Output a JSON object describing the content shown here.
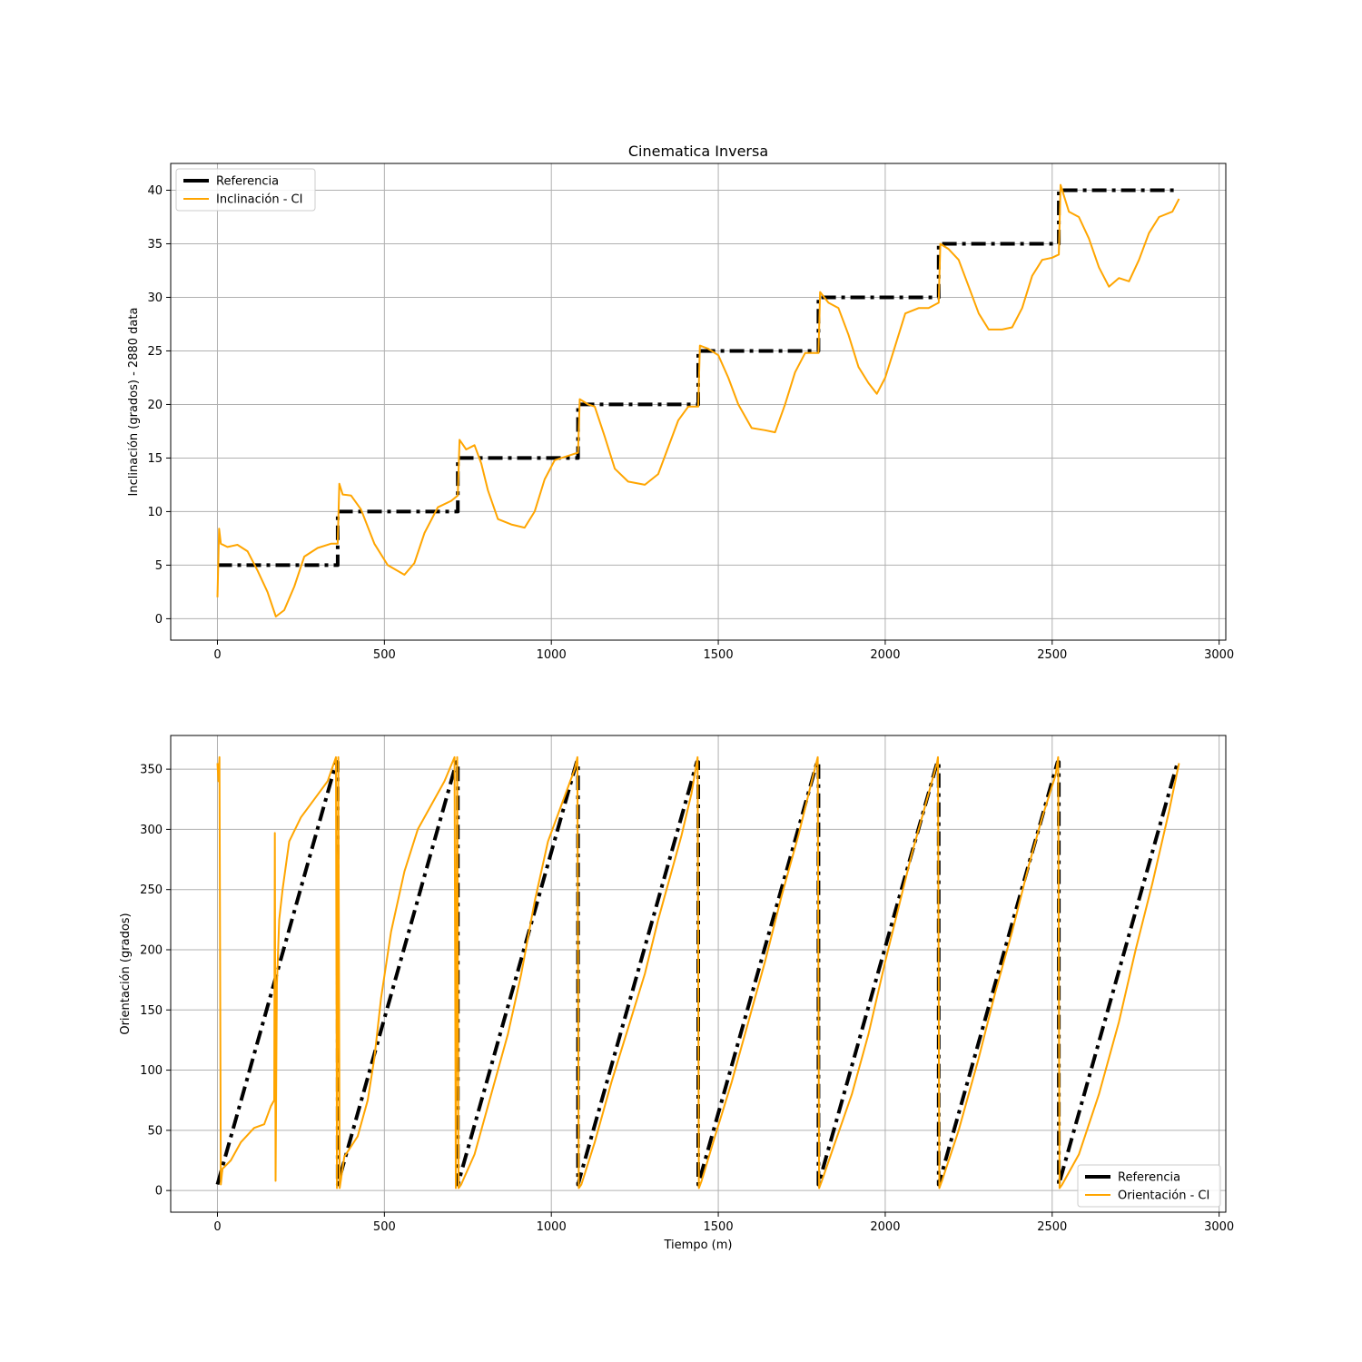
{
  "colors": {
    "reference": "#000000",
    "ik": "#FFA500",
    "grid": "#b0b0b0"
  },
  "chart_data": [
    {
      "type": "line",
      "title": "Cinematica Inversa",
      "xlabel": "",
      "ylabel": "Inclinación (grados) - 2880 data",
      "xlim": [
        -140,
        3020
      ],
      "ylim": [
        -2,
        42.5
      ],
      "xticks": [
        0,
        500,
        1000,
        1500,
        2000,
        2500,
        3000
      ],
      "yticks": [
        0,
        5,
        10,
        15,
        20,
        25,
        30,
        35,
        40
      ],
      "grid": true,
      "legend_position": "upper-left",
      "series": [
        {
          "name": "Referencia",
          "style": "dash-dot",
          "points": [
            [
              0,
              5
            ],
            [
              360,
              5
            ],
            [
              360,
              10
            ],
            [
              720,
              10
            ],
            [
              720,
              15
            ],
            [
              1080,
              15
            ],
            [
              1080,
              20
            ],
            [
              1440,
              20
            ],
            [
              1440,
              25
            ],
            [
              1800,
              25
            ],
            [
              1800,
              30
            ],
            [
              2160,
              30
            ],
            [
              2160,
              35
            ],
            [
              2520,
              35
            ],
            [
              2520,
              40
            ],
            [
              2880,
              40
            ]
          ]
        },
        {
          "name": "Inclinación - CI",
          "style": "solid",
          "points": [
            [
              0,
              2
            ],
            [
              5,
              8.4
            ],
            [
              10,
              7
            ],
            [
              30,
              6.7
            ],
            [
              60,
              6.9
            ],
            [
              90,
              6.3
            ],
            [
              120,
              4.5
            ],
            [
              150,
              2.5
            ],
            [
              175,
              0.2
            ],
            [
              200,
              0.8
            ],
            [
              230,
              3
            ],
            [
              260,
              5.8
            ],
            [
              300,
              6.6
            ],
            [
              340,
              7
            ],
            [
              360,
              7
            ],
            [
              365,
              12.6
            ],
            [
              375,
              11.6
            ],
            [
              400,
              11.5
            ],
            [
              430,
              10.2
            ],
            [
              470,
              7
            ],
            [
              510,
              5
            ],
            [
              560,
              4.1
            ],
            [
              590,
              5.2
            ],
            [
              620,
              8
            ],
            [
              660,
              10.4
            ],
            [
              700,
              11
            ],
            [
              720,
              11.5
            ],
            [
              725,
              16.7
            ],
            [
              745,
              15.8
            ],
            [
              770,
              16.2
            ],
            [
              790,
              14.5
            ],
            [
              810,
              12
            ],
            [
              840,
              9.3
            ],
            [
              880,
              8.8
            ],
            [
              920,
              8.5
            ],
            [
              950,
              10
            ],
            [
              980,
              13
            ],
            [
              1010,
              14.8
            ],
            [
              1050,
              15.2
            ],
            [
              1080,
              15.5
            ],
            [
              1085,
              20.5
            ],
            [
              1110,
              20
            ],
            [
              1130,
              19.8
            ],
            [
              1160,
              17
            ],
            [
              1190,
              14
            ],
            [
              1230,
              12.8
            ],
            [
              1280,
              12.5
            ],
            [
              1320,
              13.5
            ],
            [
              1350,
              16
            ],
            [
              1380,
              18.5
            ],
            [
              1410,
              19.8
            ],
            [
              1440,
              19.8
            ],
            [
              1445,
              25.5
            ],
            [
              1470,
              25.2
            ],
            [
              1500,
              24.6
            ],
            [
              1530,
              22.5
            ],
            [
              1560,
              20
            ],
            [
              1600,
              17.8
            ],
            [
              1640,
              17.6
            ],
            [
              1670,
              17.4
            ],
            [
              1700,
              20
            ],
            [
              1730,
              23
            ],
            [
              1760,
              24.8
            ],
            [
              1800,
              24.8
            ],
            [
              1805,
              30.5
            ],
            [
              1830,
              29.5
            ],
            [
              1860,
              29
            ],
            [
              1890,
              26.5
            ],
            [
              1920,
              23.5
            ],
            [
              1950,
              22
            ],
            [
              1975,
              21
            ],
            [
              2000,
              22.5
            ],
            [
              2030,
              25.5
            ],
            [
              2060,
              28.5
            ],
            [
              2100,
              29
            ],
            [
              2130,
              29
            ],
            [
              2160,
              29.5
            ],
            [
              2165,
              35
            ],
            [
              2190,
              34.5
            ],
            [
              2220,
              33.5
            ],
            [
              2250,
              31
            ],
            [
              2280,
              28.5
            ],
            [
              2310,
              27
            ],
            [
              2350,
              27
            ],
            [
              2380,
              27.2
            ],
            [
              2410,
              29
            ],
            [
              2440,
              32
            ],
            [
              2470,
              33.5
            ],
            [
              2500,
              33.7
            ],
            [
              2520,
              34
            ],
            [
              2525,
              40.5
            ],
            [
              2550,
              38
            ],
            [
              2580,
              37.5
            ],
            [
              2610,
              35.5
            ],
            [
              2640,
              32.8
            ],
            [
              2670,
              31
            ],
            [
              2700,
              31.8
            ],
            [
              2730,
              31.5
            ],
            [
              2760,
              33.5
            ],
            [
              2790,
              36
            ],
            [
              2820,
              37.5
            ],
            [
              2860,
              38
            ],
            [
              2880,
              39.2
            ]
          ]
        }
      ]
    },
    {
      "type": "line",
      "title": "",
      "xlabel": "Tiempo (m)",
      "ylabel": "Orientación (grados)",
      "xlim": [
        -140,
        3020
      ],
      "ylim": [
        -18,
        378
      ],
      "xticks": [
        0,
        500,
        1000,
        1500,
        2000,
        2500,
        3000
      ],
      "yticks": [
        0,
        50,
        100,
        150,
        200,
        250,
        300,
        350
      ],
      "grid": true,
      "legend_position": "lower-right",
      "series": [
        {
          "name": "Referencia",
          "style": "dash-dot",
          "points": [
            [
              0,
              5
            ],
            [
              356,
              356
            ],
            [
              360,
              356
            ],
            [
              360,
              5
            ],
            [
              716,
              356
            ],
            [
              720,
              356
            ],
            [
              720,
              5
            ],
            [
              1076,
              356
            ],
            [
              1080,
              356
            ],
            [
              1080,
              5
            ],
            [
              1436,
              356
            ],
            [
              1440,
              356
            ],
            [
              1440,
              5
            ],
            [
              1796,
              356
            ],
            [
              1800,
              356
            ],
            [
              1800,
              5
            ],
            [
              2156,
              356
            ],
            [
              2160,
              356
            ],
            [
              2160,
              5
            ],
            [
              2516,
              356
            ],
            [
              2520,
              356
            ],
            [
              2520,
              5
            ],
            [
              2876,
              356
            ]
          ]
        },
        {
          "name": "Orientación - CI",
          "style": "solid",
          "points": [
            [
              0,
              355
            ],
            [
              3,
              340
            ],
            [
              6,
              360
            ],
            [
              10,
              5
            ],
            [
              15,
              18
            ],
            [
              40,
              25
            ],
            [
              70,
              40
            ],
            [
              110,
              52
            ],
            [
              140,
              55
            ],
            [
              160,
              70
            ],
            [
              170,
              75
            ],
            [
              172,
              297
            ],
            [
              174,
              8
            ],
            [
              178,
              170
            ],
            [
              185,
              225
            ],
            [
              195,
              250
            ],
            [
              215,
              290
            ],
            [
              250,
              310
            ],
            [
              290,
              325
            ],
            [
              330,
              340
            ],
            [
              355,
              360
            ],
            [
              358,
              2
            ],
            [
              362,
              360
            ],
            [
              366,
              2
            ],
            [
              380,
              28
            ],
            [
              420,
              45
            ],
            [
              450,
              75
            ],
            [
              470,
              110
            ],
            [
              490,
              160
            ],
            [
              520,
              215
            ],
            [
              560,
              265
            ],
            [
              600,
              300
            ],
            [
              640,
              320
            ],
            [
              680,
              340
            ],
            [
              710,
              360
            ],
            [
              714,
              2
            ],
            [
              718,
              360
            ],
            [
              722,
              2
            ],
            [
              730,
              5
            ],
            [
              770,
              30
            ],
            [
              820,
              80
            ],
            [
              870,
              130
            ],
            [
              910,
              180
            ],
            [
              950,
              240
            ],
            [
              990,
              290
            ],
            [
              1030,
              320
            ],
            [
              1070,
              350
            ],
            [
              1078,
              360
            ],
            [
              1082,
              2
            ],
            [
              1090,
              5
            ],
            [
              1130,
              40
            ],
            [
              1180,
              90
            ],
            [
              1230,
              135
            ],
            [
              1280,
              180
            ],
            [
              1320,
              225
            ],
            [
              1360,
              265
            ],
            [
              1390,
              295
            ],
            [
              1420,
              330
            ],
            [
              1438,
              360
            ],
            [
              1442,
              2
            ],
            [
              1450,
              8
            ],
            [
              1490,
              45
            ],
            [
              1540,
              90
            ],
            [
              1590,
              140
            ],
            [
              1640,
              190
            ],
            [
              1690,
              245
            ],
            [
              1740,
              295
            ],
            [
              1780,
              340
            ],
            [
              1798,
              360
            ],
            [
              1802,
              2
            ],
            [
              1810,
              8
            ],
            [
              1850,
              40
            ],
            [
              1900,
              80
            ],
            [
              1950,
              130
            ],
            [
              2000,
              190
            ],
            [
              2040,
              235
            ],
            [
              2080,
              280
            ],
            [
              2120,
              320
            ],
            [
              2155,
              355
            ],
            [
              2158,
              360
            ],
            [
              2162,
              2
            ],
            [
              2170,
              8
            ],
            [
              2220,
              50
            ],
            [
              2280,
              110
            ],
            [
              2330,
              165
            ],
            [
              2380,
              215
            ],
            [
              2430,
              270
            ],
            [
              2470,
              310
            ],
            [
              2510,
              345
            ],
            [
              2518,
              360
            ],
            [
              2522,
              2
            ],
            [
              2530,
              5
            ],
            [
              2580,
              30
            ],
            [
              2640,
              80
            ],
            [
              2700,
              140
            ],
            [
              2750,
              200
            ],
            [
              2800,
              255
            ],
            [
              2850,
              315
            ],
            [
              2880,
              355
            ]
          ]
        }
      ]
    }
  ]
}
